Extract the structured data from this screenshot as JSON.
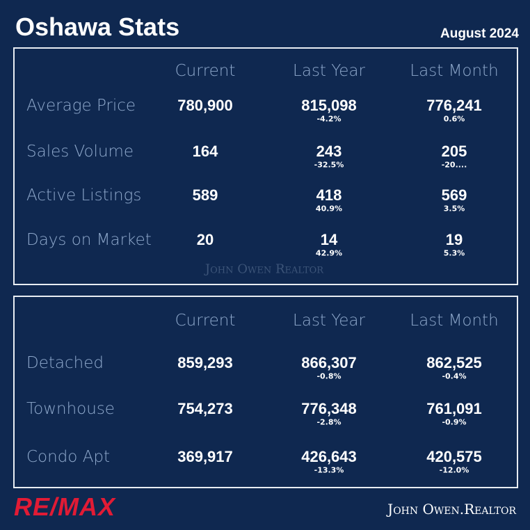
{
  "header": {
    "title": "Oshawa Stats",
    "date": "August 2024"
  },
  "market": {
    "columns": [
      "Current",
      "Last Year",
      "Last Month"
    ],
    "watermark": "John Owen Realtor",
    "rows": [
      {
        "label": "Average Price",
        "current": "780,900",
        "last_year": "815,098",
        "last_year_change": "-4.2%",
        "last_month": "776,241",
        "last_month_change": "0.6%"
      },
      {
        "label": "Sales Volume",
        "current": "164",
        "last_year": "243",
        "last_year_change": "-32.5%",
        "last_month": "205",
        "last_month_change": "-20...."
      },
      {
        "label": "Active Listings",
        "current": "589",
        "last_year": "418",
        "last_year_change": "40.9%",
        "last_month": "569",
        "last_month_change": "3.5%"
      },
      {
        "label": "Days on Market",
        "current": "20",
        "last_year": "14",
        "last_year_change": "42.9%",
        "last_month": "19",
        "last_month_change": "5.3%"
      }
    ]
  },
  "types": {
    "columns": [
      "Current",
      "Last Year",
      "Last Month"
    ],
    "rows": [
      {
        "label": "Detached",
        "current": "859,293",
        "last_year": "866,307",
        "last_year_change": "-0.8%",
        "last_month": "862,525",
        "last_month_change": "-0.4%"
      },
      {
        "label": "Townhouse",
        "current": "754,273",
        "last_year": "776,348",
        "last_year_change": "-2.8%",
        "last_month": "761,091",
        "last_month_change": "-0.9%"
      },
      {
        "label": "Condo Apt",
        "current": "369,917",
        "last_year": "426,643",
        "last_year_change": "-13.3%",
        "last_month": "420,575",
        "last_month_change": "-12.0%"
      }
    ]
  },
  "footer": {
    "logo": "RE/MAX",
    "brand": "John Owen.Realtor"
  }
}
